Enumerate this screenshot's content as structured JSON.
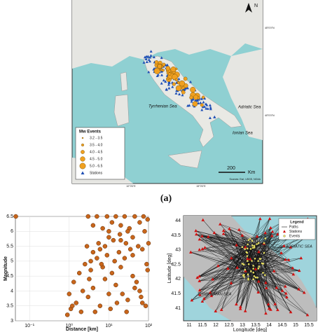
{
  "map_a": {
    "lat_labels": [
      "45°0'0\"N",
      "40°0'0\"N"
    ],
    "lon_labels": [
      "10°0'0\"E",
      "15°0'0\"E"
    ],
    "seas": [
      "Adriatic Sea",
      "Tyrrhenian Sea",
      "Ionian Sea"
    ],
    "legend": {
      "title": "Mw Events",
      "items": [
        "3.2 - 3.5",
        "3.5 - 4.0",
        "4.0 - 4.5",
        "4.5 - 5.0",
        "5.0 - 6.5",
        "Stations"
      ]
    },
    "scale": {
      "value": "200",
      "unit": "Km"
    },
    "source": "Sources: Esri, USGS, NOAA",
    "north": "N",
    "caption": "(a)"
  },
  "chart_data": {
    "type": "scatter",
    "x_label": "Distance [km]",
    "y_label": "Magnitude",
    "x": [
      0.045,
      1.1,
      1.5,
      2,
      3,
      4,
      6,
      8,
      10,
      12,
      15,
      20,
      30,
      40,
      60,
      90,
      1,
      1.3,
      1.8,
      2.5,
      3.5,
      5,
      7,
      9,
      14,
      18,
      25,
      35,
      50,
      70,
      95,
      0.9,
      1.2,
      2.2,
      3.2,
      4.5,
      6.5,
      11,
      16,
      22,
      28,
      45,
      65,
      85,
      2.8,
      4,
      5.5,
      8,
      13,
      19,
      27,
      40,
      55,
      80,
      3,
      5,
      9,
      15,
      25,
      45,
      75,
      4,
      7,
      12,
      20,
      33,
      60,
      95,
      10,
      30,
      3.5,
      6,
      10,
      20,
      40,
      70,
      100
    ],
    "y": [
      6.5,
      3.4,
      3.6,
      3.3,
      3.8,
      4.1,
      3.5,
      4.4,
      3.9,
      4.6,
      4.2,
      4.8,
      3.7,
      4.5,
      4,
      4.9,
      3.9,
      4.3,
      4.6,
      4.9,
      4.7,
      5.1,
      4.8,
      5.2,
      5,
      5.3,
      5.1,
      5.4,
      4.3,
      3.6,
      4.7,
      3.2,
      3.5,
      4,
      4.4,
      3.3,
      4.9,
      3.4,
      3.6,
      3.9,
      3.3,
      4.1,
      3.8,
      3.5,
      5.5,
      5.3,
      5.6,
      5.5,
      5.7,
      5.9,
      5.6,
      5.8,
      5.5,
      6,
      6.5,
      6.5,
      6.5,
      6.5,
      6.5,
      6.5,
      6.5,
      6.2,
      6.1,
      6.3,
      6.2,
      6.1,
      6.3,
      6.4,
      6,
      6,
      5,
      5.4,
      5.8,
      5.7,
      5.2,
      5.4,
      5.6
    ],
    "color": "#c8651b",
    "xlog": true,
    "grid": true,
    "xlim": [
      0.044,
      100
    ],
    "ylim": [
      3,
      6.5
    ],
    "xticks": [
      {
        "value": 0.1,
        "label": "10⁻¹"
      },
      {
        "value": 1,
        "label": "10⁰"
      },
      {
        "value": 10,
        "label": "10¹"
      },
      {
        "value": 100,
        "label": "10²"
      }
    ],
    "yticks": [
      3,
      3.5,
      4,
      4.5,
      5,
      5.5,
      6,
      6.5
    ]
  },
  "map_c": {
    "x_label": "Longitude [deg]",
    "y_label": "Latitude [deg]",
    "lon_ticks": [
      "11",
      "11.5",
      "12",
      "12.5",
      "13",
      "13.5",
      "14",
      "14.5",
      "15",
      "15.5"
    ],
    "lat_ticks": [
      "41",
      "41.5",
      "42",
      "42.5",
      "43",
      "43.5",
      "44"
    ],
    "legend": {
      "title": "Legend",
      "items": [
        "Paths",
        "Stations",
        "Events"
      ]
    },
    "seas": [
      "ADRIATIC SEA",
      "TYRRHENIAN SEA"
    ]
  }
}
